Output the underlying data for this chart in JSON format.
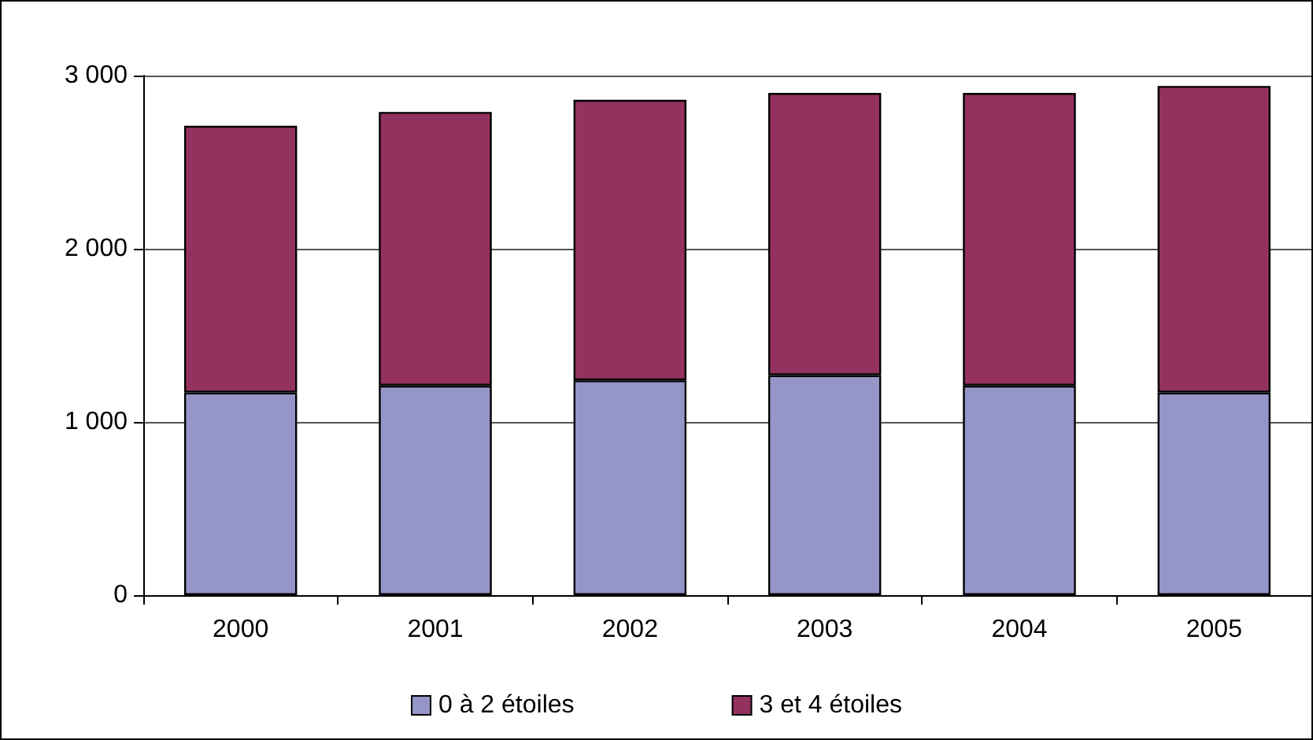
{
  "chart_data": {
    "type": "bar",
    "stacked": true,
    "categories": [
      "2000",
      "2001",
      "2002",
      "2003",
      "2004",
      "2005"
    ],
    "series": [
      {
        "name": "0 à 2 étoiles",
        "color": "#9595c8",
        "values": [
          1170,
          1210,
          1240,
          1270,
          1210,
          1170
        ]
      },
      {
        "name": "3 et 4 étoiles",
        "color": "#93325e",
        "values": [
          1540,
          1580,
          1620,
          1630,
          1690,
          1770
        ]
      }
    ],
    "ylim": [
      0,
      3000
    ],
    "yticks": [
      {
        "value": 0,
        "label": "0"
      },
      {
        "value": 1000,
        "label": "1 000"
      },
      {
        "value": 2000,
        "label": "2 000"
      },
      {
        "value": 3000,
        "label": "3 000"
      }
    ],
    "grid": "y",
    "legend": "bottom"
  }
}
